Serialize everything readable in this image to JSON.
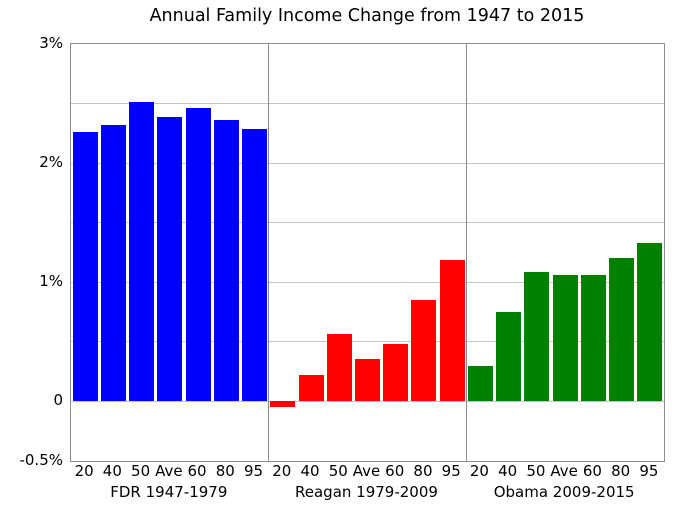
{
  "chart_data": {
    "type": "bar",
    "title": "Annual Family Income Change from 1947 to 2015",
    "xlabel": "",
    "ylabel": "",
    "ylim": [
      -0.5,
      3
    ],
    "grid_interval": 0.5,
    "grid": true,
    "legend_position": "none",
    "y_ticks": [
      {
        "value": 3,
        "label": "3%"
      },
      {
        "value": 2,
        "label": "2%"
      },
      {
        "value": 1,
        "label": "1%"
      },
      {
        "value": 0,
        "label": "0"
      },
      {
        "value": -0.5,
        "label": "-0.5%"
      }
    ],
    "categories": [
      "20",
      "40",
      "50",
      "Ave",
      "60",
      "80",
      "95"
    ],
    "series": [
      {
        "name": "FDR 1947-1979",
        "color": "#0000ff",
        "values": [
          2.26,
          2.32,
          2.51,
          2.39,
          2.46,
          2.36,
          2.29
        ]
      },
      {
        "name": "Reagan 1979-2009",
        "color": "#ff0000",
        "values": [
          -0.05,
          0.22,
          0.57,
          0.36,
          0.48,
          0.85,
          1.19
        ]
      },
      {
        "name": "Obama 2009-2015",
        "color": "#008000",
        "values": [
          0.3,
          0.75,
          1.09,
          1.06,
          1.06,
          1.2,
          1.33
        ]
      }
    ]
  }
}
